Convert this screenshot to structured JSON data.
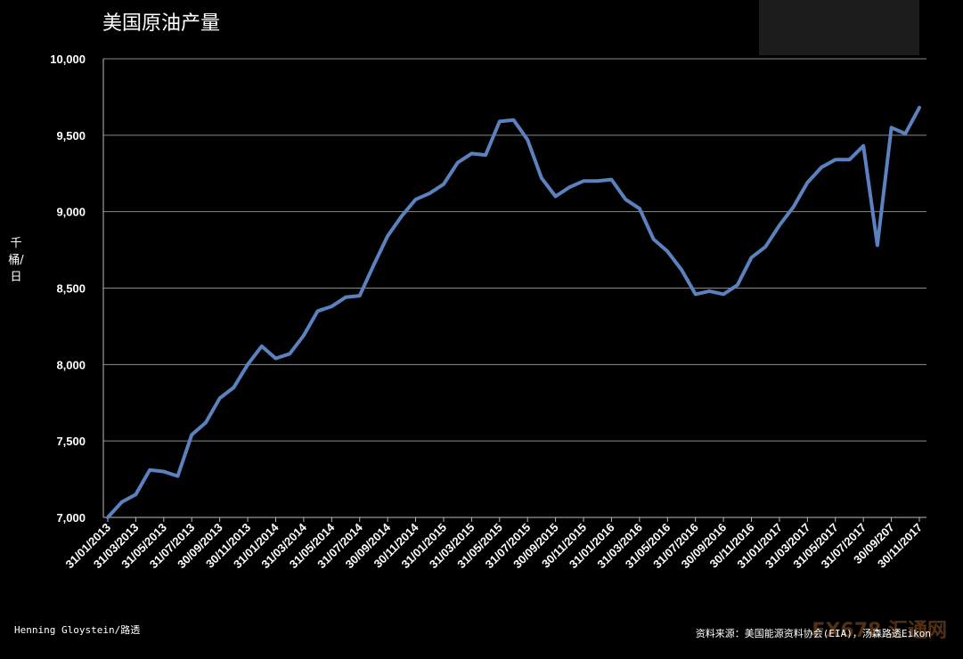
{
  "chart_data": {
    "type": "line",
    "title": "美国原油产量",
    "ylabel": "千桶/日",
    "xlabel": "",
    "ylim": [
      7000,
      10000
    ],
    "yticks": [
      7000,
      7500,
      8000,
      8500,
      9000,
      9500,
      10000
    ],
    "ytick_labels": [
      "7,000",
      "7,500",
      "8,000",
      "8,500",
      "9,000",
      "9,500",
      "10,000"
    ],
    "x_tick_labels": [
      "31/01/2013",
      "31/03/2013",
      "31/05/2013",
      "31/07/2013",
      "30/09/2013",
      "30/11/2013",
      "31/01/2014",
      "31/03/2014",
      "31/05/2014",
      "31/07/2014",
      "30/09/2014",
      "30/11/2014",
      "31/01/2015",
      "31/03/2015",
      "31/05/2015",
      "31/07/2015",
      "30/09/2015",
      "30/11/2015",
      "31/01/2016",
      "31/03/2016",
      "31/05/2016",
      "31/07/2016",
      "30/09/2016",
      "30/11/2016",
      "31/01/2017",
      "31/03/2017",
      "31/05/2017",
      "31/07/2017",
      "30/09/207",
      "30/11/2017"
    ],
    "grid": true,
    "line_color": "#5b82bf",
    "series": [
      {
        "values": [
          7000,
          7100,
          7150,
          7310,
          7300,
          7270,
          7540,
          7620,
          7780,
          7850,
          8000,
          8120,
          8040,
          8070,
          8190,
          8350,
          8380,
          8440,
          8450,
          8650,
          8840,
          8970,
          9080,
          9120,
          9180,
          9320,
          9380,
          9370,
          9590,
          9600,
          9470,
          9220,
          9100,
          9160,
          9200,
          9200,
          9210,
          9080,
          9020,
          8820,
          8740,
          8620,
          8460,
          8480,
          8460,
          8520,
          8700,
          8770,
          8910,
          9030,
          9190,
          9290,
          9340,
          9340,
          9430,
          8780,
          9550,
          9510,
          9680
        ]
      }
    ]
  },
  "credits": {
    "author": "Henning Gloystein/路透",
    "source": "资料来源：美国能源资料协会(EIA)，汤森路透Eikon",
    "watermark": "FX678 汇通网"
  }
}
